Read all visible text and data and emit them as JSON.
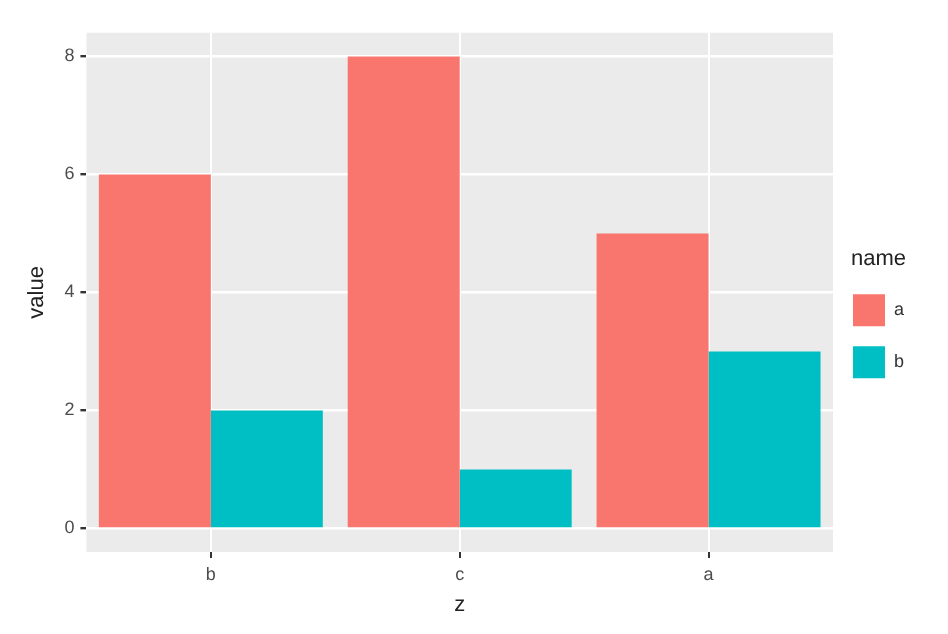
{
  "chart_data": {
    "type": "bar",
    "xlabel": "z",
    "ylabel": "value",
    "legend_title": "name",
    "categories": [
      "b",
      "c",
      "a"
    ],
    "series": [
      {
        "name": "a",
        "color": "#f8766d",
        "values": [
          6,
          8,
          5
        ]
      },
      {
        "name": "b",
        "color": "#00bfc4",
        "values": [
          2,
          1,
          3
        ]
      }
    ],
    "ylim": [
      -0.4,
      8.4
    ],
    "yticks": [
      0,
      2,
      4,
      6,
      8
    ],
    "grid": true,
    "legend": "right"
  }
}
